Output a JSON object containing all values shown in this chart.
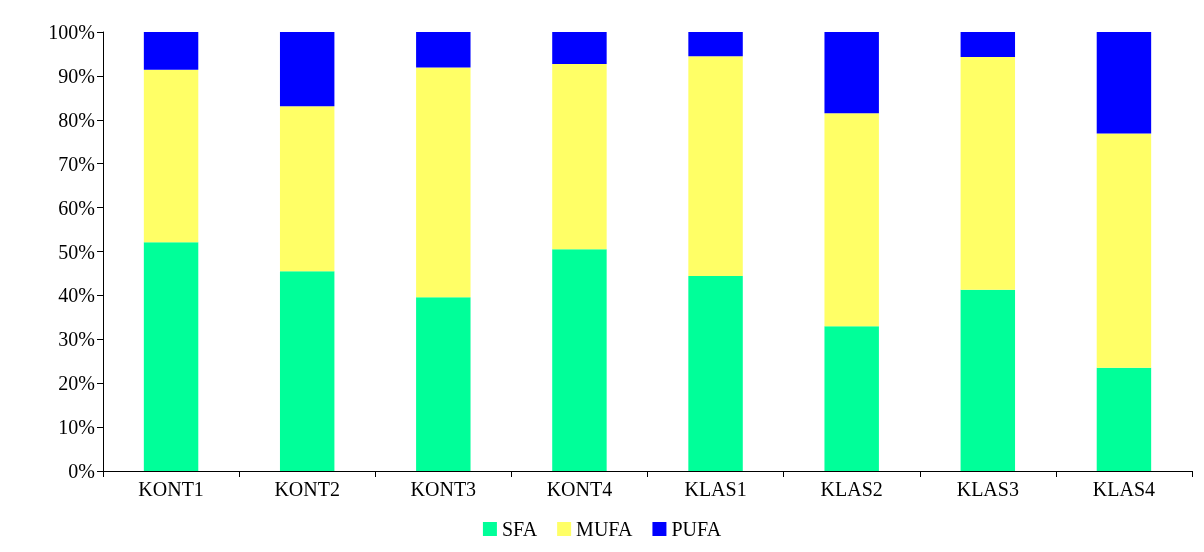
{
  "chart_data": {
    "type": "bar",
    "stacked": true,
    "categories": [
      "KONT1",
      "KONT2",
      "KONT3",
      "KONT4",
      "KLAS1",
      "KLAS2",
      "KLAS3",
      "KLAS4"
    ],
    "series": [
      {
        "name": "SFA",
        "color": "#00ff99",
        "values": [
          52.1,
          45.5,
          39.6,
          50.5,
          44.4,
          33.0,
          41.3,
          23.5
        ]
      },
      {
        "name": "MUFA",
        "color": "#ffff66",
        "values": [
          39.3,
          37.6,
          52.3,
          42.2,
          50.1,
          48.5,
          53.0,
          53.4
        ]
      },
      {
        "name": "PUFA",
        "color": "#0000ff",
        "values": [
          8.6,
          16.9,
          8.1,
          7.3,
          5.5,
          18.5,
          5.7,
          23.1
        ]
      }
    ],
    "ylim": [
      0,
      100
    ],
    "yticks": [
      {
        "value": 0,
        "label": "0%"
      },
      {
        "value": 10,
        "label": "10%"
      },
      {
        "value": 20,
        "label": "20%"
      },
      {
        "value": 30,
        "label": "30%"
      },
      {
        "value": 40,
        "label": "40%"
      },
      {
        "value": 50,
        "label": "50%"
      },
      {
        "value": 60,
        "label": "60%"
      },
      {
        "value": 70,
        "label": "70%"
      },
      {
        "value": 80,
        "label": "80%"
      },
      {
        "value": 90,
        "label": "90%"
      },
      {
        "value": 100,
        "label": "100%"
      }
    ],
    "grid": false,
    "legend": "bottom"
  }
}
